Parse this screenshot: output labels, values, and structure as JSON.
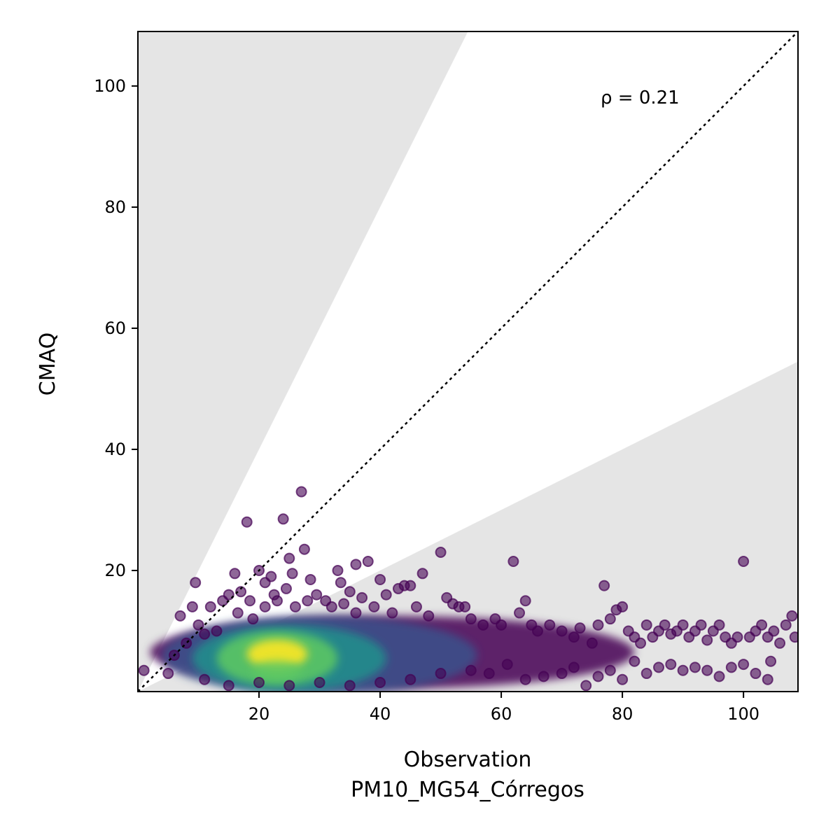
{
  "chart_data": {
    "type": "scatter",
    "title": "",
    "xlabel": "Observation",
    "xlabel_sub": "PM10_MG54_Córregos",
    "ylabel": "CMAQ",
    "xlim": [
      0,
      109
    ],
    "ylim": [
      0,
      109
    ],
    "x_ticks": [
      20,
      40,
      60,
      80,
      100
    ],
    "y_ticks": [
      20,
      40,
      60,
      80,
      100
    ],
    "annotation": "ρ = 0.21",
    "grid": false,
    "reference_line": {
      "slope": 1,
      "style": "dotted",
      "color": "#000000"
    },
    "shaded_regions": [
      {
        "description": "above y = 2x",
        "slope_from": 2,
        "color": "#e5e5e5"
      },
      {
        "description": "below y = 0.5x",
        "slope_to": 0.5,
        "color": "#e5e5e5"
      }
    ],
    "colormap": [
      "#440154",
      "#3b528b",
      "#21918c",
      "#5ec962",
      "#fde725"
    ],
    "density_core": {
      "x_center": 24,
      "y_center": 5,
      "note": "densest cluster near x 15-35, y 2-9"
    },
    "points": [
      [
        1,
        3.5
      ],
      [
        5,
        3
      ],
      [
        6,
        6
      ],
      [
        7,
        12.5
      ],
      [
        8,
        8
      ],
      [
        9,
        14
      ],
      [
        9.5,
        18
      ],
      [
        10,
        11
      ],
      [
        11,
        9.5
      ],
      [
        12,
        14
      ],
      [
        13,
        10
      ],
      [
        14,
        15
      ],
      [
        15,
        16
      ],
      [
        16,
        19.5
      ],
      [
        16.5,
        13
      ],
      [
        17,
        16.5
      ],
      [
        18,
        28
      ],
      [
        18.5,
        15
      ],
      [
        19,
        12
      ],
      [
        20,
        20
      ],
      [
        21,
        18
      ],
      [
        21,
        14
      ],
      [
        22,
        19
      ],
      [
        22.5,
        16
      ],
      [
        23,
        15
      ],
      [
        24,
        28.5
      ],
      [
        24.5,
        17
      ],
      [
        25,
        22
      ],
      [
        25.5,
        19.5
      ],
      [
        26,
        14
      ],
      [
        27,
        33
      ],
      [
        27.5,
        23.5
      ],
      [
        28,
        15
      ],
      [
        28.5,
        18.5
      ],
      [
        29.5,
        16
      ],
      [
        31,
        15
      ],
      [
        32,
        14
      ],
      [
        33,
        20
      ],
      [
        33.5,
        18
      ],
      [
        34,
        14.5
      ],
      [
        35,
        16.5
      ],
      [
        36,
        21
      ],
      [
        36,
        13
      ],
      [
        37,
        15.5
      ],
      [
        38,
        21.5
      ],
      [
        39,
        14
      ],
      [
        40,
        18.5
      ],
      [
        41,
        16
      ],
      [
        42,
        13
      ],
      [
        43,
        17
      ],
      [
        44,
        17.5
      ],
      [
        45,
        17.5
      ],
      [
        46,
        14
      ],
      [
        47,
        19.5
      ],
      [
        48,
        12.5
      ],
      [
        50,
        23
      ],
      [
        51,
        15.5
      ],
      [
        52,
        14.5
      ],
      [
        53,
        14
      ],
      [
        54,
        14
      ],
      [
        55,
        12
      ],
      [
        57,
        11
      ],
      [
        59,
        12
      ],
      [
        60,
        11
      ],
      [
        62,
        21.5
      ],
      [
        63,
        13
      ],
      [
        64,
        15
      ],
      [
        65,
        11
      ],
      [
        66,
        10
      ],
      [
        68,
        11
      ],
      [
        70,
        10
      ],
      [
        72,
        9
      ],
      [
        73,
        10.5
      ],
      [
        75,
        8
      ],
      [
        76,
        11
      ],
      [
        77,
        17.5
      ],
      [
        78,
        12
      ],
      [
        79,
        13.5
      ],
      [
        80,
        14
      ],
      [
        81,
        10
      ],
      [
        82,
        9
      ],
      [
        83,
        8
      ],
      [
        84,
        11
      ],
      [
        85,
        9
      ],
      [
        86,
        10
      ],
      [
        87,
        11
      ],
      [
        88,
        9.5
      ],
      [
        89,
        10
      ],
      [
        90,
        11
      ],
      [
        91,
        9
      ],
      [
        92,
        10
      ],
      [
        93,
        11
      ],
      [
        94,
        8.5
      ],
      [
        95,
        10
      ],
      [
        96,
        11
      ],
      [
        97,
        9
      ],
      [
        98,
        8
      ],
      [
        99,
        9
      ],
      [
        100,
        21.5
      ],
      [
        101,
        9
      ],
      [
        102,
        10
      ],
      [
        103,
        11
      ],
      [
        104,
        9
      ],
      [
        105,
        10
      ],
      [
        106,
        8
      ],
      [
        107,
        11
      ],
      [
        108,
        12.5
      ],
      [
        108.5,
        9
      ],
      [
        11,
        2
      ],
      [
        15,
        1
      ],
      [
        20,
        1.5
      ],
      [
        25,
        1
      ],
      [
        30,
        1.5
      ],
      [
        35,
        1
      ],
      [
        40,
        1.5
      ],
      [
        45,
        2
      ],
      [
        50,
        3
      ],
      [
        55,
        3.5
      ],
      [
        58,
        3
      ],
      [
        61,
        4.5
      ],
      [
        64,
        2
      ],
      [
        67,
        2.5
      ],
      [
        70,
        3
      ],
      [
        72,
        4
      ],
      [
        74,
        1
      ],
      [
        76,
        2.5
      ],
      [
        78,
        3.5
      ],
      [
        80,
        2
      ],
      [
        82,
        5
      ],
      [
        84,
        3
      ],
      [
        86,
        4
      ],
      [
        88,
        4.5
      ],
      [
        90,
        3.5
      ],
      [
        92,
        4
      ],
      [
        94,
        3.5
      ],
      [
        96,
        2.5
      ],
      [
        98,
        4
      ],
      [
        100,
        4.5
      ],
      [
        102,
        3
      ],
      [
        104,
        2
      ],
      [
        104.5,
        5
      ]
    ]
  }
}
